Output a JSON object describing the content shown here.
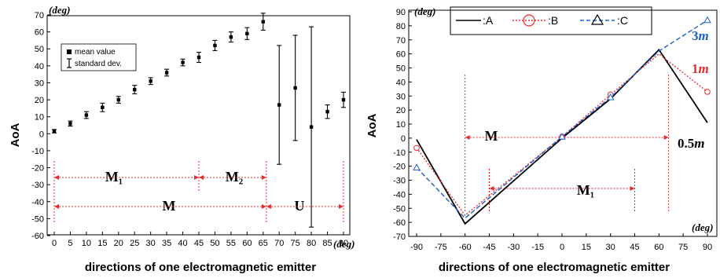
{
  "chart_data": [
    {
      "type": "scatter",
      "xlabel": "directions of one electromagnetic emitter",
      "ylabel": "AoA",
      "x_unit": "(deg)",
      "y_unit": "(deg)",
      "xlim": [
        -2,
        92
      ],
      "ylim": [
        -60,
        70
      ],
      "xticks": [
        0,
        5,
        10,
        15,
        20,
        25,
        30,
        35,
        40,
        45,
        50,
        55,
        60,
        65,
        70,
        75,
        80,
        85,
        90
      ],
      "yticks": [
        -60,
        -50,
        -40,
        -30,
        -20,
        -10,
        0,
        10,
        20,
        30,
        40,
        50,
        60,
        70
      ],
      "legend": [
        "mean value",
        "standard dev."
      ],
      "points": [
        {
          "x": 0,
          "mean": 1.5,
          "sd": 1
        },
        {
          "x": 5,
          "mean": 6,
          "sd": 1.5
        },
        {
          "x": 10,
          "mean": 11,
          "sd": 2
        },
        {
          "x": 15,
          "mean": 15.5,
          "sd": 2.5
        },
        {
          "x": 20,
          "mean": 20,
          "sd": 2
        },
        {
          "x": 25,
          "mean": 26,
          "sd": 2.5
        },
        {
          "x": 30,
          "mean": 31,
          "sd": 2
        },
        {
          "x": 35,
          "mean": 36,
          "sd": 2
        },
        {
          "x": 40,
          "mean": 42,
          "sd": 2
        },
        {
          "x": 45,
          "mean": 45,
          "sd": 3
        },
        {
          "x": 50,
          "mean": 52,
          "sd": 3
        },
        {
          "x": 55,
          "mean": 57,
          "sd": 3
        },
        {
          "x": 60,
          "mean": 59,
          "sd": 3.5
        },
        {
          "x": 65,
          "mean": 66,
          "sd": 5
        },
        {
          "x": 70,
          "mean": 17,
          "sd": 35
        },
        {
          "x": 75,
          "mean": 27,
          "sd": 31
        },
        {
          "x": 80,
          "mean": 4,
          "sd": 59
        },
        {
          "x": 85,
          "mean": 13,
          "sd": 4
        },
        {
          "x": 90,
          "mean": 20,
          "sd": 4.5
        }
      ],
      "annotations": {
        "m1": {
          "label": "M₁",
          "from": 0,
          "to": 45
        },
        "m2": {
          "label": "M₂",
          "from": 45,
          "to": 66
        },
        "m": {
          "label": "M",
          "from": 0,
          "to": 66
        },
        "u": {
          "label": "U",
          "from": 66,
          "to": 90
        }
      }
    },
    {
      "type": "line",
      "xlabel": "directions of one electromagnetic emitter",
      "ylabel": "AoA",
      "x_unit": "(deg)",
      "y_unit": "(deg)",
      "xlim": [
        -90,
        90
      ],
      "ylim": [
        -70,
        90
      ],
      "xticks": [
        -90,
        -75,
        -60,
        -45,
        -30,
        -15,
        0,
        15,
        30,
        45,
        60,
        75,
        90
      ],
      "yticks": [
        -70,
        -60,
        -50,
        -40,
        -30,
        -20,
        -10,
        0,
        10,
        20,
        30,
        40,
        50,
        60,
        70,
        80,
        90
      ],
      "legend_placement": "top-left",
      "series": [
        {
          "name": ":A",
          "color": "#000000",
          "x": [
            -90,
            -60,
            0,
            30,
            60,
            90
          ],
          "y": [
            -1,
            -61,
            0,
            28,
            63,
            11
          ]
        },
        {
          "name": ":B",
          "color": "#e8292e",
          "x": [
            -90,
            -60,
            0,
            30,
            60,
            90
          ],
          "y": [
            -7,
            -55,
            1,
            31,
            60,
            33
          ]
        },
        {
          "name": ":C",
          "color": "#1f5fc6",
          "x": [
            -90,
            -60,
            0,
            30,
            60,
            90
          ],
          "y": [
            -21,
            -57,
            1,
            29,
            62,
            84
          ]
        }
      ],
      "end_labels": [
        {
          "text": "3m",
          "y": 72,
          "color": "#1f5fc6"
        },
        {
          "text": "1m",
          "y": 45,
          "color": "#e8292e"
        },
        {
          "text": "0.5m",
          "y": 7,
          "color": "#000000"
        }
      ],
      "annotations": {
        "m": {
          "label": "M",
          "from": -60,
          "to": 66
        },
        "m1": {
          "label": "M₁",
          "from": -45,
          "to": 45
        }
      }
    }
  ]
}
